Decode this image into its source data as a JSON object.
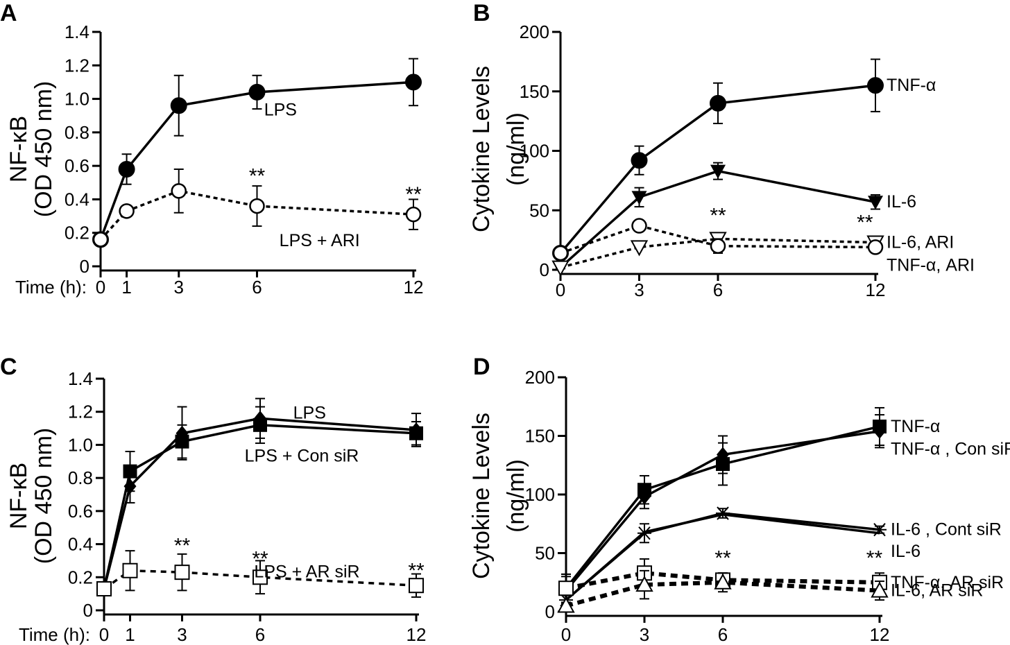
{
  "chart_data": [
    {
      "panel": "A",
      "type": "line",
      "ylabel_lines": [
        "NF-κB",
        "(OD 450 nm)"
      ],
      "xlabel_prefix": "Time (h):",
      "x_ticks": [
        0,
        1,
        3,
        6,
        12
      ],
      "y_ticks": [
        "0",
        "0.2",
        "0.4",
        "0.6",
        "0.8",
        "1.0",
        "1.2",
        "1.4"
      ],
      "ylim": [
        0,
        1.4
      ],
      "xlim": [
        0,
        12
      ],
      "series": [
        {
          "name": "LPS",
          "marker": "circle-filled",
          "line": "solid",
          "x": [
            0,
            1,
            3,
            6,
            12
          ],
          "y": [
            0.16,
            0.58,
            0.96,
            1.04,
            1.1
          ],
          "err": [
            0.03,
            0.09,
            0.18,
            0.1,
            0.14
          ]
        },
        {
          "name": "LPS + ARI",
          "marker": "circle-open",
          "line": "dotted",
          "x": [
            0,
            1,
            3,
            6,
            12
          ],
          "y": [
            0.16,
            0.33,
            0.45,
            0.36,
            0.31
          ],
          "err": [
            0.03,
            0.0,
            0.13,
            0.12,
            0.09
          ]
        }
      ],
      "annotations": [
        {
          "text": "LPS",
          "x": 6.9,
          "y": 0.9
        },
        {
          "text": "LPS + ARI",
          "x": 8.4,
          "y": 0.12
        },
        {
          "text": "**",
          "x": 6,
          "y": 0.5
        },
        {
          "text": "**",
          "x": 12,
          "y": 0.39
        }
      ]
    },
    {
      "panel": "B",
      "type": "line",
      "ylabel_lines": [
        "Cytokine Levels",
        "(ng/ml)"
      ],
      "x_ticks": [
        0,
        3,
        6,
        12
      ],
      "y_ticks": [
        "0",
        "50",
        "100",
        "150",
        "200"
      ],
      "ylim": [
        0,
        200
      ],
      "xlim": [
        0,
        12
      ],
      "series": [
        {
          "name": "TNF-α",
          "marker": "circle-filled",
          "line": "solid",
          "x": [
            0,
            3,
            6,
            12
          ],
          "y": [
            14,
            92,
            140,
            155
          ],
          "err": [
            2,
            12,
            17,
            22
          ]
        },
        {
          "name": "IL-6",
          "marker": "tri-down-filled",
          "line": "solid",
          "x": [
            0,
            3,
            6,
            12
          ],
          "y": [
            2,
            61,
            83,
            57
          ],
          "err": [
            1,
            8,
            7,
            6
          ]
        },
        {
          "name": "IL-6,  ARI",
          "marker": "tri-down-open",
          "line": "dotted",
          "x": [
            0,
            3,
            6,
            12
          ],
          "y": [
            2,
            19,
            26,
            23
          ],
          "err": [
            1,
            0,
            0,
            0
          ]
        },
        {
          "name": "TNF-α,  ARI",
          "marker": "circle-open",
          "line": "dotted",
          "x": [
            0,
            3,
            6,
            12
          ],
          "y": [
            14,
            37,
            20,
            19
          ],
          "err": [
            2,
            0,
            6,
            3
          ]
        }
      ],
      "annotations": [
        {
          "text": "**",
          "x": 6,
          "y": 40
        },
        {
          "text": "**",
          "x": 11.6,
          "y": 34
        }
      ]
    },
    {
      "panel": "C",
      "type": "line",
      "ylabel_lines": [
        "NF-κB",
        "(OD 450 nm)"
      ],
      "xlabel_prefix": "Time (h):",
      "x_ticks": [
        0,
        1,
        3,
        6,
        12
      ],
      "y_ticks": [
        "0",
        "0.2",
        "0.4",
        "0.6",
        "0.8",
        "1.0",
        "1.2",
        "1.4"
      ],
      "ylim": [
        0,
        1.4
      ],
      "xlim": [
        0,
        12
      ],
      "series": [
        {
          "name": "LPS",
          "marker": "diamond-filled",
          "line": "solid",
          "x": [
            0,
            1,
            3,
            6,
            12
          ],
          "y": [
            0.13,
            0.75,
            1.07,
            1.16,
            1.09
          ],
          "err": [
            0.0,
            0.1,
            0.16,
            0.12,
            0.1
          ]
        },
        {
          "name": "LPS + Con siR",
          "marker": "square-filled",
          "line": "solid",
          "x": [
            0,
            1,
            3,
            6,
            12
          ],
          "y": [
            0.13,
            0.84,
            1.02,
            1.12,
            1.07
          ],
          "err": [
            0.0,
            0.12,
            0.1,
            0.11,
            0.07
          ]
        },
        {
          "name": "LPS + AR siR",
          "marker": "square-open",
          "line": "dashed",
          "x": [
            0,
            1,
            3,
            6,
            12
          ],
          "y": [
            0.13,
            0.24,
            0.23,
            0.2,
            0.15
          ],
          "err": [
            0.0,
            0.12,
            0.11,
            0.1,
            0.07
          ]
        }
      ],
      "annotations": [
        {
          "text": "LPS",
          "x": 7.9,
          "y": 1.16
        },
        {
          "text": "LPS + Con siR",
          "x": 7.6,
          "y": 0.9
        },
        {
          "text": "LPS + AR siR",
          "x": 7.8,
          "y": 0.2
        },
        {
          "text": "**",
          "x": 3,
          "y": 0.35
        },
        {
          "text": "**",
          "x": 6,
          "y": 0.27
        },
        {
          "text": "**",
          "x": 12,
          "y": 0.2
        }
      ]
    },
    {
      "panel": "D",
      "type": "line",
      "ylabel_lines": [
        "Cytokine Levels",
        "(ng/ml)"
      ],
      "x_ticks": [
        0,
        3,
        6,
        12
      ],
      "y_ticks": [
        "0",
        "50",
        "100",
        "150",
        "200"
      ],
      "ylim": [
        0,
        200
      ],
      "xlim": [
        0,
        12
      ],
      "series": [
        {
          "name": "TNF-α",
          "marker": "square-filled",
          "line": "solid",
          "x": [
            0,
            3,
            6,
            12
          ],
          "y": [
            20,
            104,
            126,
            158
          ],
          "err": [
            12,
            12,
            18,
            16
          ]
        },
        {
          "name": "TNF-α , Con siR",
          "marker": "diamond-filled",
          "line": "solid",
          "x": [
            0,
            3,
            6,
            12
          ],
          "y": [
            18,
            98,
            134,
            154
          ],
          "err": [
            12,
            10,
            16,
            14
          ]
        },
        {
          "name": "IL-6 ,  Cont siR",
          "marker": "asterisk",
          "line": "solid",
          "x": [
            0,
            3,
            6,
            12
          ],
          "y": [
            10,
            67,
            84,
            70
          ],
          "err": [
            4,
            8,
            4,
            3
          ]
        },
        {
          "name": "IL-6",
          "marker": "none",
          "line": "solid",
          "x": [
            0,
            3,
            6,
            12
          ],
          "y": [
            10,
            68,
            83,
            67
          ],
          "err": [
            0,
            0,
            0,
            0
          ]
        },
        {
          "name": "TNF-α,  AR siR",
          "marker": "square-open",
          "line": "dashed-thick",
          "x": [
            0,
            3,
            6,
            12
          ],
          "y": [
            20,
            33,
            27,
            25
          ],
          "err": [
            12,
            12,
            6,
            8
          ]
        },
        {
          "name": "IL-6,  AR siR",
          "marker": "tri-up-open",
          "line": "dashed-thick",
          "x": [
            0,
            3,
            6,
            12
          ],
          "y": [
            5,
            23,
            25,
            18
          ],
          "err": [
            2,
            12,
            8,
            8
          ]
        }
      ],
      "annotations": [
        {
          "text": "**",
          "x": 6,
          "y": 40
        },
        {
          "text": "**",
          "x": 11.8,
          "y": 40
        }
      ]
    }
  ],
  "panel_labels": [
    "A",
    "B",
    "C",
    "D"
  ]
}
